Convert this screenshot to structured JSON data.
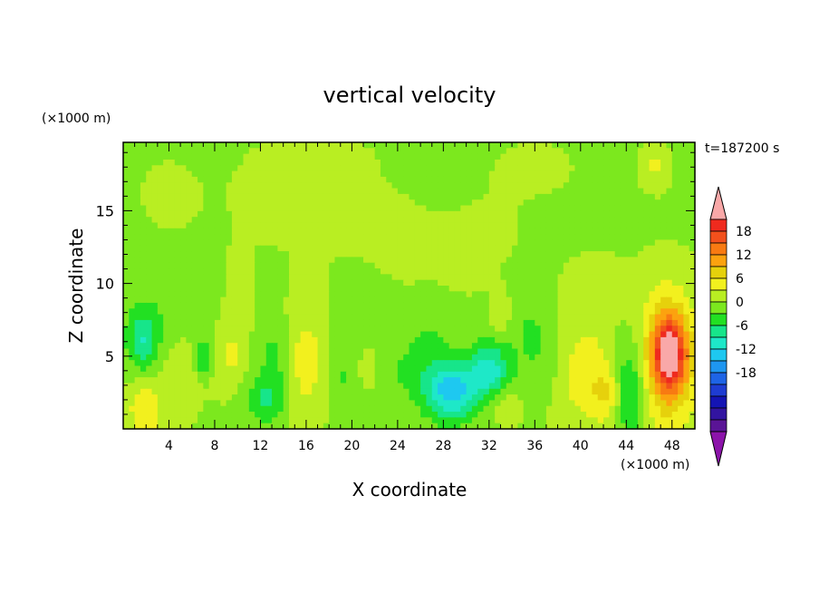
{
  "chart_data": {
    "type": "heatmap",
    "title": "vertical velocity",
    "xlabel": "X coordinate",
    "ylabel": "Z coordinate",
    "x_unit": "(×1000 m)",
    "y_unit": "(×1000 m)",
    "time_label": "t=187200 s",
    "xlim": [
      0,
      50
    ],
    "ylim": [
      0,
      19.7
    ],
    "x_ticks": [
      4,
      8,
      12,
      16,
      20,
      24,
      28,
      32,
      36,
      40,
      44,
      48
    ],
    "y_ticks": [
      5,
      10,
      15
    ],
    "colorbar": {
      "ticks": [
        18,
        12,
        6,
        0,
        -6,
        -12,
        -18
      ],
      "levels": [
        {
          "color": "#f9a8a8"
        },
        {
          "color": "#ef2a1e"
        },
        {
          "color": "#f2501c"
        },
        {
          "color": "#f87a12"
        },
        {
          "color": "#fca20f"
        },
        {
          "color": "#e6d10c"
        },
        {
          "color": "#f2f01e"
        },
        {
          "color": "#b9ee22"
        },
        {
          "color": "#7ce81e"
        },
        {
          "color": "#22e022"
        },
        {
          "color": "#17e58a"
        },
        {
          "color": "#1ee8c8"
        },
        {
          "color": "#1ec8f0"
        },
        {
          "color": "#1e96f0"
        },
        {
          "color": "#1e64e6"
        },
        {
          "color": "#1e3cd2"
        },
        {
          "color": "#1414b4"
        },
        {
          "color": "#3214a0"
        },
        {
          "color": "#5a1496"
        },
        {
          "color": "#8c14aa"
        }
      ]
    },
    "background_value": -0.5,
    "features": [
      {
        "x": 47.6,
        "z": 4.8,
        "value": 13,
        "sx": 1.8,
        "sz": 3.2
      },
      {
        "x": 47.8,
        "z": 5.2,
        "value": 15,
        "sx": 0.9,
        "sz": 1.6
      },
      {
        "x": 28.7,
        "z": 2.6,
        "value": -13,
        "sx": 1.6,
        "sz": 1.4
      },
      {
        "x": 32.1,
        "z": 4.0,
        "value": -10,
        "sx": 1.2,
        "sz": 1.4
      },
      {
        "x": 44.3,
        "z": 2.9,
        "value": -8,
        "sx": 1.1,
        "sz": 2.6
      },
      {
        "x": 1.7,
        "z": 6.0,
        "value": -6,
        "sx": 0.7,
        "sz": 1.4
      },
      {
        "x": 7.0,
        "z": 4.9,
        "value": -6,
        "sx": 0.5,
        "sz": 0.9
      },
      {
        "x": 1.9,
        "z": 1.4,
        "value": 6,
        "sx": 1.2,
        "sz": 1.6
      },
      {
        "x": 16.0,
        "z": 4.5,
        "value": 5,
        "sx": 1.5,
        "sz": 3.0
      },
      {
        "x": 40.4,
        "z": 3.8,
        "value": 5,
        "sx": 2.2,
        "sz": 3.0
      },
      {
        "x": 42.4,
        "z": 2.4,
        "value": 5,
        "sx": 1.0,
        "sz": 1.3
      },
      {
        "x": 9.3,
        "z": 5.0,
        "value": 4,
        "sx": 1.1,
        "sz": 1.8
      },
      {
        "x": 5.0,
        "z": 4.0,
        "value": 4,
        "sx": 1.2,
        "sz": 2.0
      },
      {
        "x": 33.0,
        "z": 7.9,
        "value": 4,
        "sx": 0.6,
        "sz": 1.0
      },
      {
        "x": 21.4,
        "z": 4.4,
        "value": 4,
        "sx": 0.6,
        "sz": 1.1
      },
      {
        "x": 46.5,
        "z": 18.0,
        "value": 4,
        "sx": 0.8,
        "sz": 1.0
      },
      {
        "x": 33.3,
        "z": 1.8,
        "value": 3,
        "sx": 1.2,
        "sz": 1.0
      },
      {
        "x": 10.0,
        "z": 9.5,
        "value": 2,
        "sx": 1.0,
        "sz": 1.8
      },
      {
        "x": 13.3,
        "z": 4.6,
        "value": -4,
        "sx": 1.0,
        "sz": 2.2
      },
      {
        "x": 12.3,
        "z": 2.0,
        "value": -5,
        "sx": 1.3,
        "sz": 1.1
      },
      {
        "x": 19.0,
        "z": 3.6,
        "value": -3,
        "sx": 1.2,
        "sz": 2.0
      },
      {
        "x": 25.5,
        "z": 4.0,
        "value": -3,
        "sx": 2.0,
        "sz": 1.6
      },
      {
        "x": 36.5,
        "z": 4.5,
        "value": -3,
        "sx": 1.5,
        "sz": 2.0
      },
      {
        "x": 2.5,
        "z": 6.5,
        "value": -3,
        "sx": 2.5,
        "sz": 2.4
      },
      {
        "x": 6.6,
        "z": 9.5,
        "value": -2,
        "sx": 1.4,
        "sz": 1.4
      },
      {
        "x": 21.0,
        "z": 7.5,
        "value": -2,
        "sx": 1.5,
        "sz": 1.6
      },
      {
        "x": 27.0,
        "z": 7.0,
        "value": -2,
        "sx": 1.5,
        "sz": 1.6
      },
      {
        "x": 35.5,
        "z": 7.4,
        "value": -2,
        "sx": 1.5,
        "sz": 1.4
      },
      {
        "x": 4.0,
        "z": 16.0,
        "value": 0.8,
        "sx": 2.5,
        "sz": 2.4
      },
      {
        "x": 13.0,
        "z": 16.0,
        "value": 0.9,
        "sx": 3.0,
        "sz": 2.4
      },
      {
        "x": 20.0,
        "z": 14.5,
        "value": 0.9,
        "sx": 4.0,
        "sz": 2.4
      },
      {
        "x": 25.5,
        "z": 11.8,
        "value": 0.8,
        "sx": 2.5,
        "sz": 2.2
      },
      {
        "x": 29.8,
        "z": 10.7,
        "value": 0.8,
        "sx": 1.8,
        "sz": 1.4
      },
      {
        "x": 32.0,
        "z": 13.5,
        "value": 0.8,
        "sx": 2.5,
        "sz": 2.0
      },
      {
        "x": 36.0,
        "z": 18.0,
        "value": 0.9,
        "sx": 3.0,
        "sz": 1.6
      },
      {
        "x": 41.5,
        "z": 10.0,
        "value": 0.8,
        "sx": 2.5,
        "sz": 2.0
      },
      {
        "x": 17.5,
        "z": 18.8,
        "value": 0.8,
        "sx": 3.5,
        "sz": 1.2
      }
    ]
  }
}
